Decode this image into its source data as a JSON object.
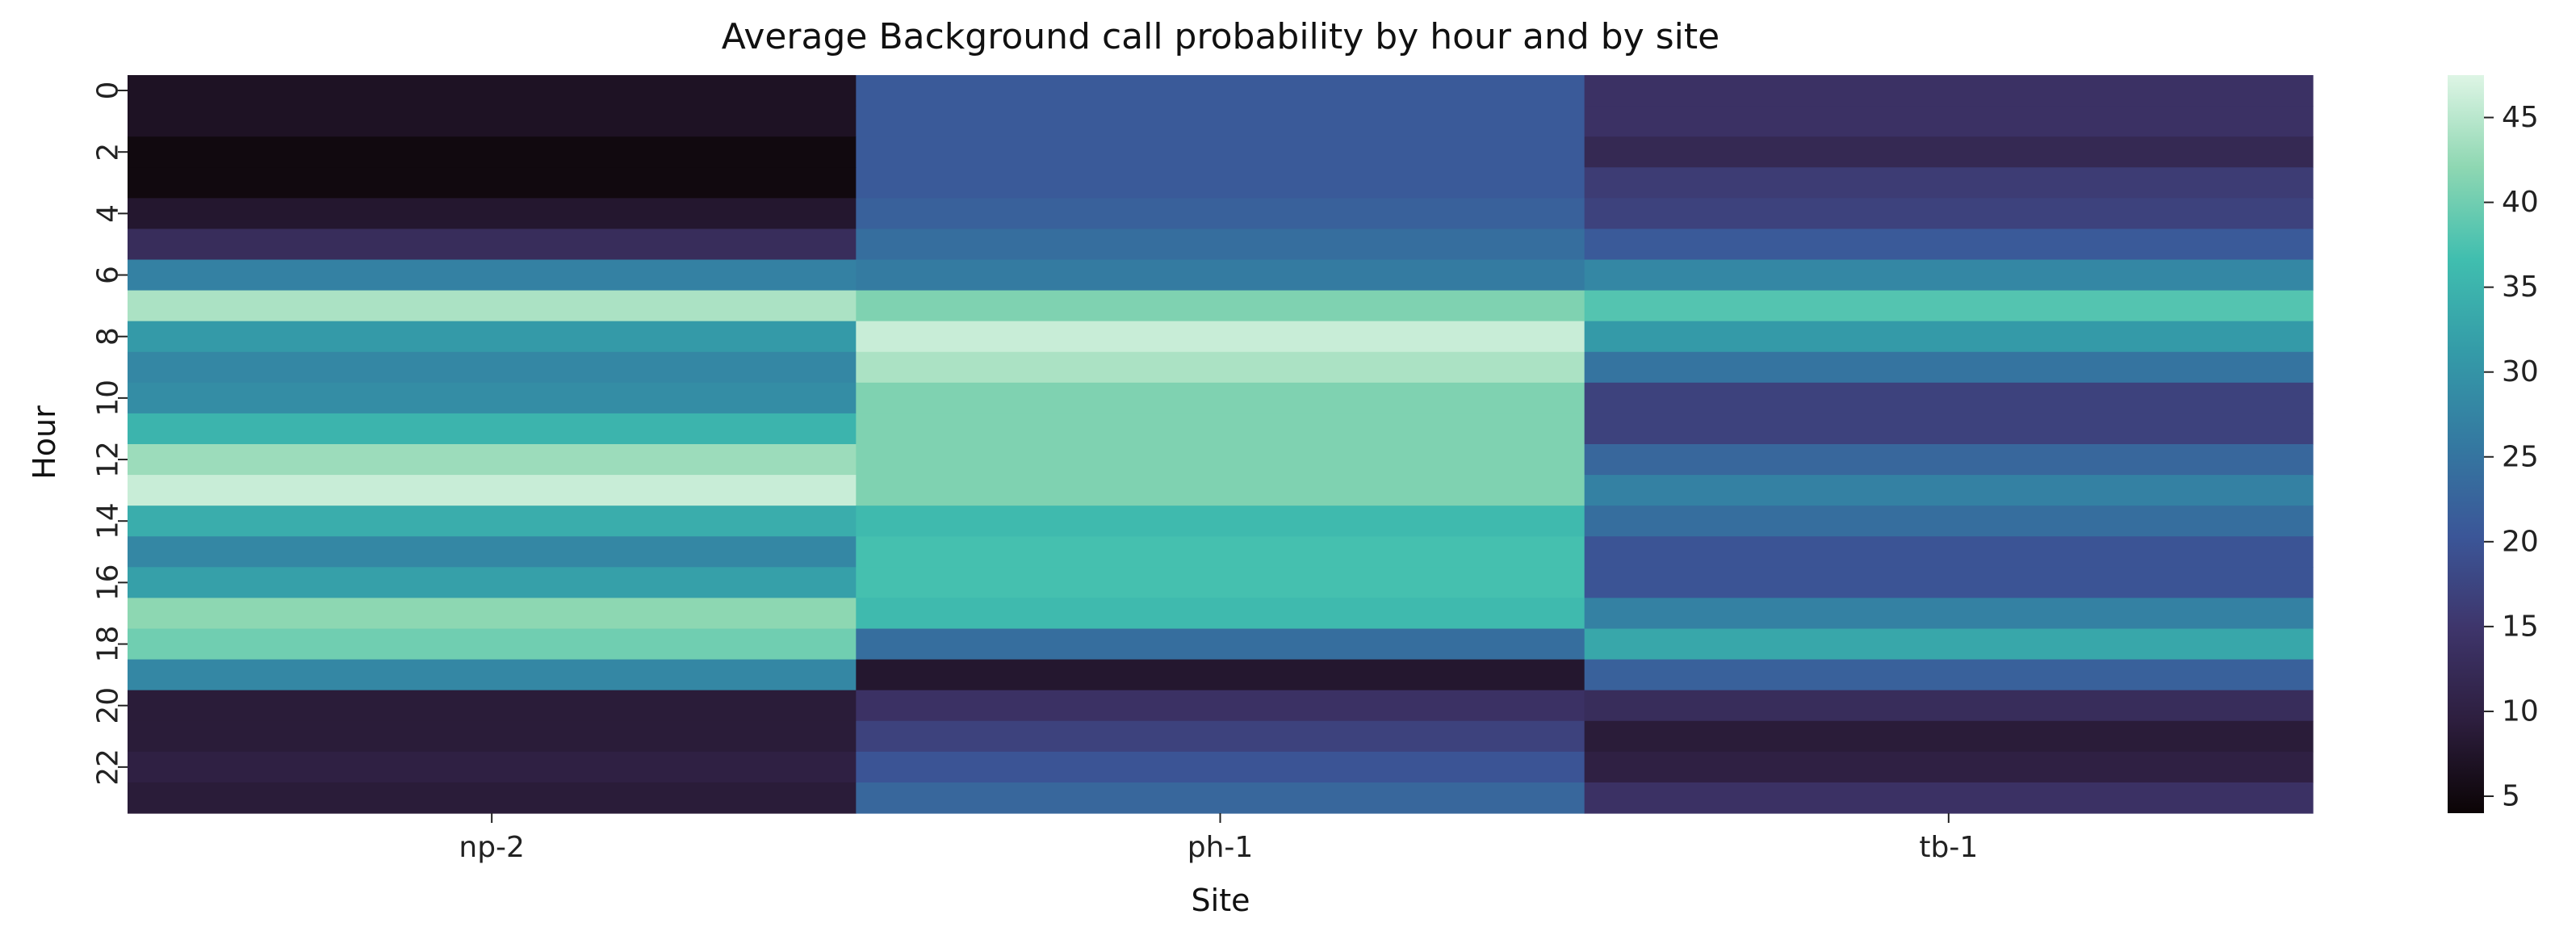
{
  "chart_data": {
    "type": "heatmap",
    "title": "Average Background call probability by hour and by site",
    "xlabel": "Site",
    "ylabel": "Hour",
    "x_categories": [
      "np-2",
      "ph-1",
      "tb-1"
    ],
    "y_categories": [
      "0",
      "1",
      "2",
      "3",
      "4",
      "5",
      "6",
      "7",
      "8",
      "9",
      "10",
      "11",
      "12",
      "13",
      "14",
      "15",
      "16",
      "17",
      "18",
      "19",
      "20",
      "21",
      "22",
      "23"
    ],
    "y_tick_labels": [
      "0",
      "2",
      "4",
      "6",
      "8",
      "10",
      "12",
      "14",
      "16",
      "18",
      "20",
      "22"
    ],
    "colorbar": {
      "colormap": "mako",
      "vmin": 4,
      "vmax": 47.5,
      "ticks": [
        5,
        10,
        15,
        20,
        25,
        30,
        35,
        40,
        45
      ]
    },
    "values": [
      [
        7,
        21,
        14
      ],
      [
        7,
        21,
        14
      ],
      [
        5,
        21,
        12
      ],
      [
        5,
        21,
        16
      ],
      [
        8,
        22,
        17
      ],
      [
        13,
        24,
        21
      ],
      [
        27,
        26,
        28
      ],
      [
        44,
        41,
        38
      ],
      [
        31,
        46,
        31
      ],
      [
        28,
        44,
        25
      ],
      [
        29,
        41,
        17
      ],
      [
        35,
        41,
        17
      ],
      [
        43,
        41,
        23
      ],
      [
        46,
        41,
        27
      ],
      [
        34,
        36,
        24
      ],
      [
        28,
        37,
        20
      ],
      [
        32,
        37,
        20
      ],
      [
        42,
        36,
        27
      ],
      [
        40,
        24,
        33
      ],
      [
        28,
        8,
        22
      ],
      [
        9,
        14,
        13
      ],
      [
        9,
        17,
        9
      ],
      [
        10,
        20,
        10
      ],
      [
        9,
        23,
        14
      ]
    ]
  }
}
